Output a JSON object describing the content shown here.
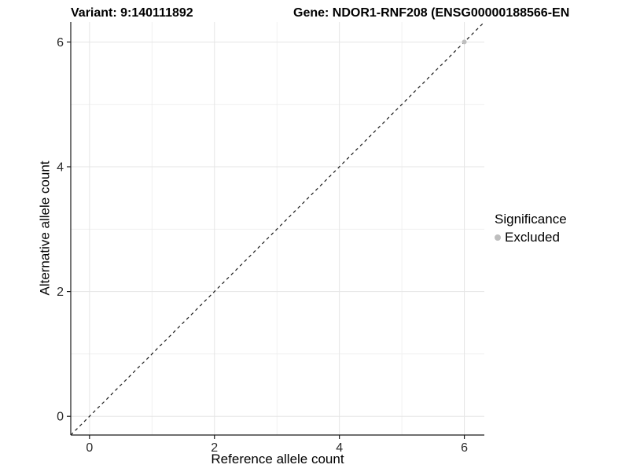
{
  "header": {
    "variant_title": "Variant: 9:140111892",
    "gene_title": "Gene: NDOR1-RNF208 (ENSG00000188566-EN"
  },
  "chart_data": {
    "type": "scatter",
    "xlabel": "Reference allele count",
    "ylabel": "Alternative allele count",
    "x": {
      "range": [
        -0.3,
        6.32
      ],
      "major_ticks": [
        0,
        2,
        4,
        6
      ],
      "minor_ticks": [
        1,
        3,
        5
      ]
    },
    "y": {
      "range": [
        -0.3,
        6.32
      ],
      "major_ticks": [
        0,
        2,
        4,
        6
      ],
      "minor_ticks": [
        1,
        3,
        5
      ]
    },
    "series": [
      {
        "name": "Excluded",
        "color": "#bebebe",
        "points": [
          [
            6,
            6
          ]
        ]
      }
    ],
    "identity_line": {
      "style": "dashed",
      "color": "#1a1a1a",
      "from": [
        -0.3,
        -0.3
      ],
      "to": [
        6.32,
        6.32
      ]
    },
    "grid": true,
    "legend_position": "right",
    "style": {
      "grid_major": "#e5e5e5",
      "grid_minor": "#ededed",
      "axis": "#1a1a1a",
      "tick_label": "#2b2b2b",
      "tick_label_size": 16
    }
  },
  "legend": {
    "title": "Significance",
    "items": [
      {
        "label": "Excluded",
        "color": "#bebebe"
      }
    ]
  }
}
